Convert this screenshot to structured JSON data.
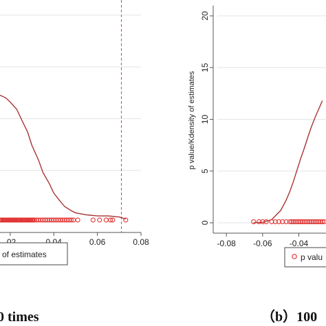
{
  "chart_data": [
    {
      "type": "scatter",
      "title": "",
      "xlabel": "",
      "ylabel": "",
      "xlim": [
        0.015,
        0.08
      ],
      "ylim": [
        -1,
        21
      ],
      "x_ticks": [
        {
          "value": 0.02,
          "label": ".02"
        },
        {
          "value": 0.04,
          "label": "0.04"
        },
        {
          "value": 0.06,
          "label": "0.06"
        },
        {
          "value": 0.08,
          "label": "0.08"
        }
      ],
      "y_gridlines": [
        5,
        10,
        15,
        20
      ],
      "grid": true,
      "reference_line_x": 0.071,
      "legend": {
        "position": "bottom",
        "entries": [
          "of estimates"
        ]
      },
      "caption": "0 times",
      "colors": {
        "density": "#a83232",
        "points": "#e03030",
        "refline": "#d94a4a",
        "grid": "#e4e4e4"
      },
      "series": [
        {
          "kind": "line",
          "x": [
            0.015,
            0.018,
            0.02,
            0.023,
            0.025,
            0.028,
            0.03,
            0.033,
            0.035,
            0.038,
            0.04,
            0.043,
            0.045,
            0.048,
            0.05,
            0.055,
            0.06,
            0.065,
            0.07,
            0.073
          ],
          "y": [
            12.3,
            12.0,
            11.6,
            10.9,
            10.0,
            8.7,
            7.4,
            6.0,
            4.8,
            3.7,
            2.8,
            2.0,
            1.5,
            1.1,
            0.9,
            0.7,
            0.6,
            0.6,
            0.5,
            0.3
          ]
        },
        {
          "kind": "points",
          "y": 0.2,
          "x": [
            0.015,
            0.0155,
            0.016,
            0.0165,
            0.017,
            0.0175,
            0.018,
            0.0185,
            0.019,
            0.0195,
            0.02,
            0.0205,
            0.021,
            0.0215,
            0.022,
            0.0225,
            0.023,
            0.0235,
            0.024,
            0.0245,
            0.025,
            0.0255,
            0.026,
            0.0265,
            0.027,
            0.0275,
            0.028,
            0.0285,
            0.029,
            0.0295,
            0.03,
            0.0305,
            0.031,
            0.032,
            0.033,
            0.034,
            0.035,
            0.036,
            0.037,
            0.038,
            0.039,
            0.04,
            0.041,
            0.042,
            0.043,
            0.044,
            0.045,
            0.046,
            0.047,
            0.048,
            0.049,
            0.051,
            0.058,
            0.061,
            0.064,
            0.066,
            0.067,
            0.073
          ]
        }
      ]
    },
    {
      "type": "scatter",
      "title": "",
      "xlabel": "",
      "ylabel": "p value/Kdensity of estimates",
      "xlim": [
        -0.085,
        -0.025
      ],
      "ylim": [
        -1,
        21
      ],
      "x_ticks": [
        {
          "value": -0.08,
          "label": "-0.08"
        },
        {
          "value": -0.06,
          "label": "-0.06"
        },
        {
          "value": -0.04,
          "label": "-0.04"
        }
      ],
      "y_ticks": [
        {
          "value": 0,
          "label": "0"
        },
        {
          "value": 5,
          "label": "5"
        },
        {
          "value": 10,
          "label": "10"
        },
        {
          "value": 15,
          "label": "15"
        },
        {
          "value": 20,
          "label": "20"
        }
      ],
      "grid": true,
      "legend": {
        "position": "bottom",
        "entries": [
          "p valu"
        ]
      },
      "caption": "（b）100",
      "colors": {
        "density": "#a83232",
        "points": "#e03030",
        "grid": "#e4e4e4"
      },
      "series": [
        {
          "kind": "line",
          "x": [
            -0.065,
            -0.06,
            -0.055,
            -0.05,
            -0.047,
            -0.045,
            -0.043,
            -0.041,
            -0.039,
            -0.037,
            -0.035,
            -0.033,
            -0.031,
            -0.029,
            -0.027
          ],
          "y": [
            0.0,
            0.05,
            0.3,
            1.2,
            2.2,
            3.0,
            4.0,
            5.1,
            6.2,
            7.2,
            8.3,
            9.3,
            10.2,
            11.0,
            11.8
          ]
        },
        {
          "kind": "points",
          "y": 0.1,
          "x": [
            -0.065,
            -0.062,
            -0.06,
            -0.058,
            -0.055,
            -0.053,
            -0.051,
            -0.049,
            -0.047,
            -0.045,
            -0.044,
            -0.043,
            -0.042,
            -0.041,
            -0.04,
            -0.039,
            -0.038,
            -0.037,
            -0.036,
            -0.035,
            -0.034,
            -0.033,
            -0.032,
            -0.031,
            -0.03,
            -0.029,
            -0.028,
            -0.027,
            -0.026
          ]
        }
      ]
    }
  ]
}
